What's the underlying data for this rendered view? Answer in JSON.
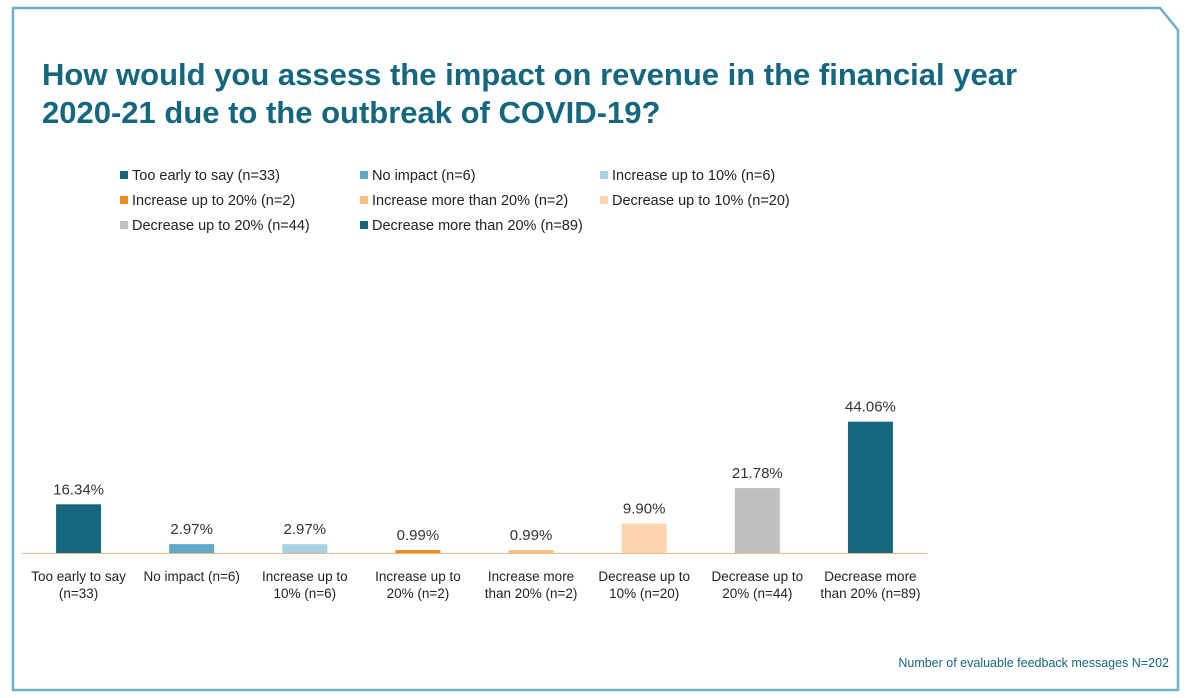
{
  "title": "How would you assess the impact on revenue in the financial year 2020-21 due to the outbreak of  COVID-19?",
  "footer_note": "Number of evaluable feedback messages N=202",
  "colors": {
    "frame": "#6fb0c4",
    "title": "#14677f",
    "baseline": "#f5b68a"
  },
  "legend": [
    {
      "label": "Too early to say (n=33)",
      "color": "#14677f"
    },
    {
      "label": "No impact (n=6)",
      "color": "#5fa8c8"
    },
    {
      "label": "Increase up to 10% (n=6)",
      "color": "#a8d1e6"
    },
    {
      "label": "Increase up to 20% (n=2)",
      "color": "#ef8a22"
    },
    {
      "label": "Increase more than 20% (n=2)",
      "color": "#f8c17d"
    },
    {
      "label": "Decrease up to 10% (n=20)",
      "color": "#fbd3ae"
    },
    {
      "label": "Decrease up to 20% (n=44)",
      "color": "#bfbfbf"
    },
    {
      "label": "Decrease more than 20% (n=89)",
      "color": "#14677f"
    }
  ],
  "chart_data": {
    "type": "bar",
    "categories": [
      [
        "Too early to say",
        "(n=33)"
      ],
      [
        "No impact (n=6)"
      ],
      [
        "Increase up to",
        "10% (n=6)"
      ],
      [
        "Increase up to",
        "20% (n=2)"
      ],
      [
        "Increase more",
        "than 20% (n=2)"
      ],
      [
        "Decrease up to",
        "10% (n=20)"
      ],
      [
        "Decrease up to",
        "20% (n=44)"
      ],
      [
        "Decrease more",
        "than 20% (n=89)"
      ]
    ],
    "values": [
      16.34,
      2.97,
      2.97,
      0.99,
      0.99,
      9.9,
      21.78,
      44.06
    ],
    "data_labels": [
      "16.34%",
      "2.97%",
      "2.97%",
      "0.99%",
      "0.99%",
      "9.90%",
      "21.78%",
      "44.06%"
    ],
    "colors": [
      "#14677f",
      "#5fa8c8",
      "#a8d1e6",
      "#ef8a22",
      "#f8c17d",
      "#fbd3ae",
      "#bfbfbf",
      "#14677f"
    ],
    "ylim": [
      0,
      50
    ],
    "grid": false
  }
}
